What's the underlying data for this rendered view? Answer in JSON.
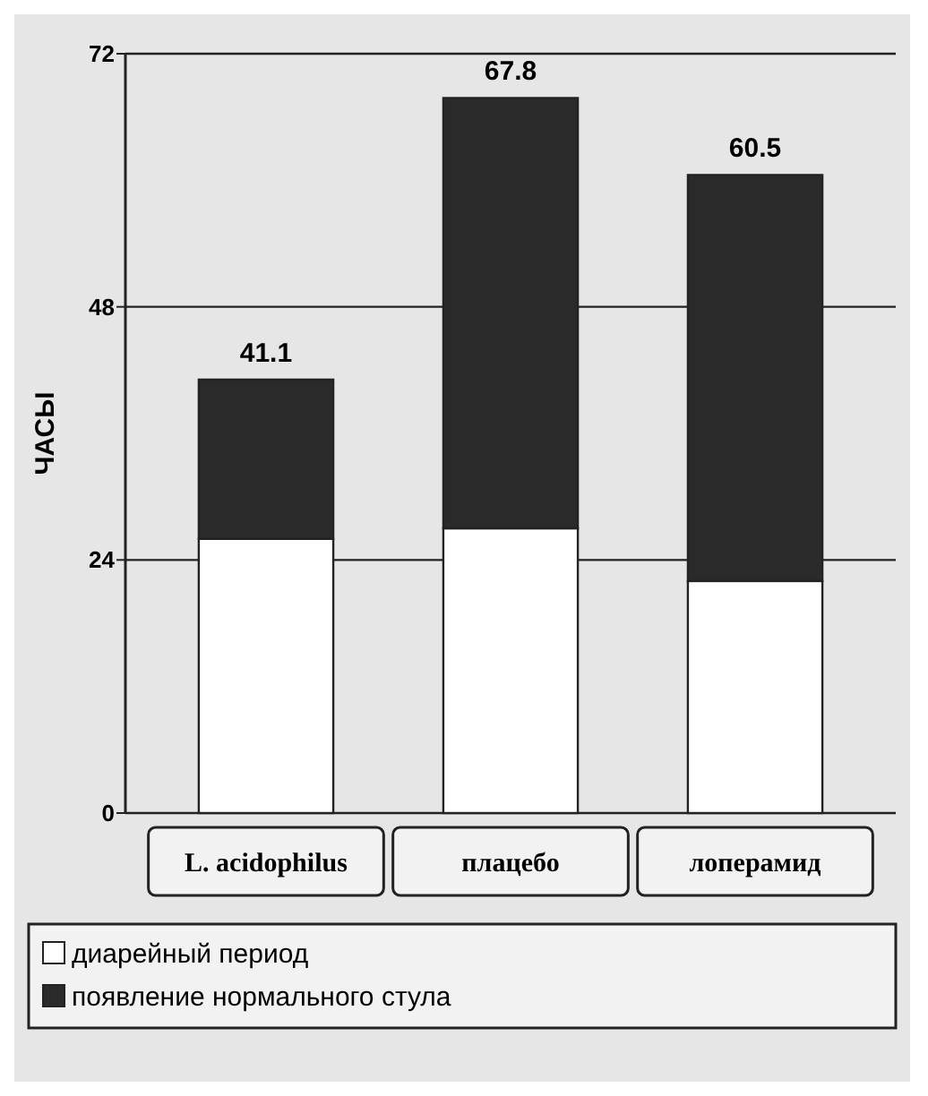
{
  "chart_data": {
    "type": "bar",
    "stacked": true,
    "ylabel": "ЧАСЫ",
    "categories": [
      "L. acidophilus",
      "плацебо",
      "лоперамид"
    ],
    "series": [
      {
        "name": "диарейный период",
        "color": "#ffffff",
        "values": [
          26,
          27,
          22
        ]
      },
      {
        "name": "появление нормального стула",
        "color": "#2a2a2a",
        "values": [
          15.1,
          40.8,
          38.5
        ]
      }
    ],
    "totals": [
      "41.1",
      "67.8",
      "60.5"
    ],
    "ylim": [
      0,
      72
    ],
    "yticks": [
      0,
      24,
      48,
      72
    ],
    "grid": "y",
    "legend": "bottom"
  }
}
